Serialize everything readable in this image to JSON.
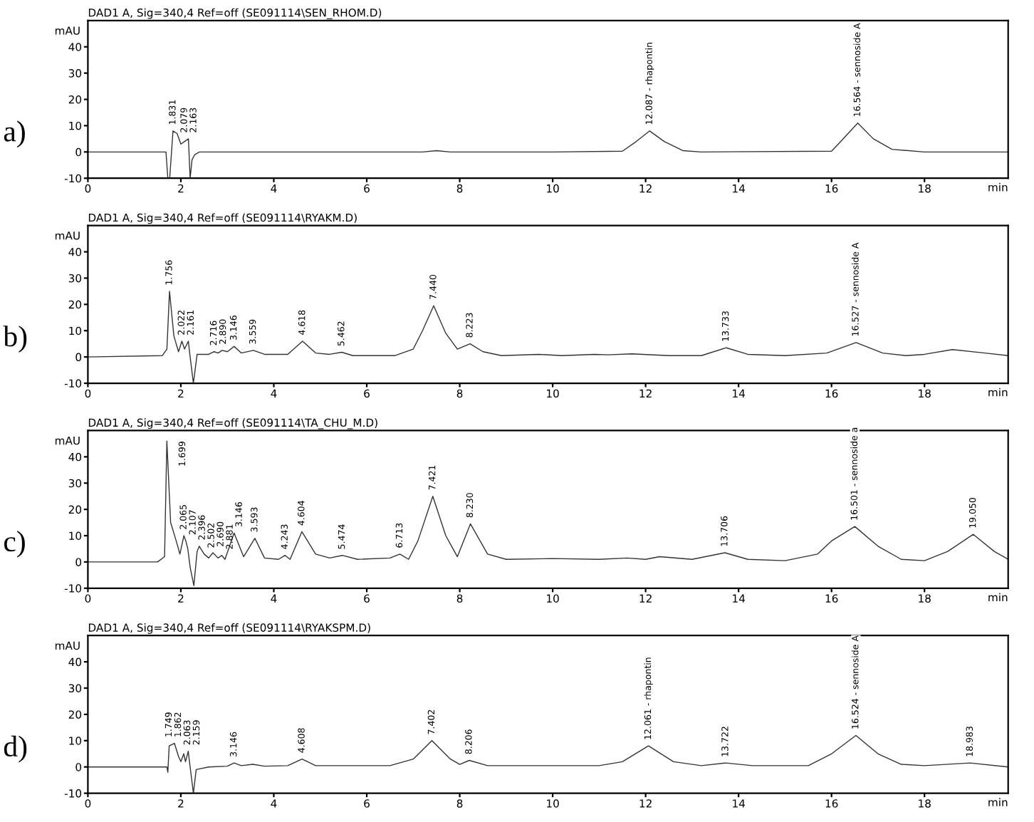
{
  "chart_data": [
    {
      "type": "line",
      "subtitle": "DAD1 A, Sig=340,4 Ref=off (SE091114\\SEN_RHOM.D)",
      "xlabel": "min",
      "ylabel": "mAU",
      "xlim": [
        0,
        19.8
      ],
      "xticks": [
        0,
        2,
        4,
        6,
        8,
        10,
        12,
        14,
        16,
        18
      ],
      "ylim": [
        -10,
        50
      ],
      "yticks": [
        -10,
        0,
        10,
        20,
        30,
        40
      ],
      "series": [
        {
          "color": "#333333",
          "x": [
            0,
            1.0,
            1.68,
            1.72,
            1.76,
            1.831,
            1.92,
            2.0,
            2.079,
            2.163,
            2.2,
            2.24,
            2.3,
            2.4,
            2.6,
            5,
            7.2,
            7.5,
            7.8,
            10,
            11.5,
            11.8,
            12.087,
            12.4,
            12.8,
            13.2,
            16.0,
            16.2,
            16.564,
            16.9,
            17.3,
            18,
            19.8
          ],
          "values": [
            0,
            0,
            0,
            -10,
            -10,
            8,
            7,
            3,
            4,
            5,
            -10,
            -3,
            -1,
            0,
            0,
            0,
            0,
            0.5,
            0,
            0,
            0.3,
            4,
            8,
            4,
            0.5,
            0,
            0.3,
            4,
            11,
            5,
            1,
            0,
            0
          ]
        }
      ],
      "annotations": [
        "a)",
        {
          "text": "1.831",
          "x": 1.831,
          "y": 8
        },
        {
          "text": "2.079",
          "x": 2.079,
          "y": 4
        },
        {
          "text": "2.163",
          "x": 2.163,
          "y": 5
        },
        {
          "text": "12.087 - rhapontin",
          "x": 12.087,
          "y": 8
        },
        {
          "text": "16.564 - sennoside A",
          "x": 16.564,
          "y": 11
        }
      ]
    },
    {
      "type": "line",
      "subtitle": "DAD1 A, Sig=340,4 Ref=off (SE091114\\RYAKM.D)",
      "xlabel": "min",
      "ylabel": "mAU",
      "xlim": [
        0,
        19.8
      ],
      "xticks": [
        0,
        2,
        4,
        6,
        8,
        10,
        12,
        14,
        16,
        18
      ],
      "ylim": [
        -10,
        50
      ],
      "yticks": [
        -10,
        0,
        10,
        20,
        30,
        40
      ],
      "series": [
        {
          "color": "#333333",
          "x": [
            0,
            1.6,
            1.7,
            1.756,
            1.85,
            1.95,
            2.022,
            2.08,
            2.161,
            2.2,
            2.27,
            2.35,
            2.6,
            2.716,
            2.8,
            2.89,
            3.0,
            3.146,
            3.3,
            3.559,
            3.8,
            4.3,
            4.618,
            4.9,
            5.2,
            5.462,
            5.7,
            6.6,
            7.0,
            7.2,
            7.44,
            7.7,
            7.95,
            8.223,
            8.5,
            8.9,
            9.7,
            10.2,
            10.9,
            11.2,
            11.7,
            12.5,
            13.2,
            13.733,
            14.2,
            15,
            15.9,
            16.527,
            17.1,
            17.6,
            18,
            18.6,
            19.3,
            19.8
          ],
          "values": [
            0,
            0.5,
            3,
            25,
            8,
            2,
            6,
            3,
            6,
            0,
            -10,
            1,
            1,
            2,
            1.5,
            2.5,
            2,
            4,
            1.5,
            2.5,
            1,
            1,
            6,
            1.5,
            1,
            1.8,
            0.5,
            0.5,
            3,
            10,
            19.5,
            9,
            3,
            5,
            2,
            0.5,
            1,
            0.5,
            1,
            0.8,
            1.2,
            0.5,
            0.5,
            3.5,
            1,
            0.5,
            1.5,
            5.5,
            1.5,
            0.5,
            1,
            2.8,
            1.5,
            0.5
          ]
        }
      ],
      "annotations": [
        "b)",
        {
          "text": "1.756",
          "x": 1.756,
          "y": 25
        },
        {
          "text": "2.022",
          "x": 2.022,
          "y": 6
        },
        {
          "text": "2.161",
          "x": 2.161,
          "y": 6
        },
        {
          "text": "2.716",
          "x": 2.716,
          "y": 2
        },
        {
          "text": "2.890",
          "x": 2.89,
          "y": 2.5
        },
        {
          "text": "3.146",
          "x": 3.146,
          "y": 4
        },
        {
          "text": "3.559",
          "x": 3.559,
          "y": 2.5
        },
        {
          "text": "4.618",
          "x": 4.618,
          "y": 6
        },
        {
          "text": "5.462",
          "x": 5.462,
          "y": 1.8
        },
        {
          "text": "7.440",
          "x": 7.44,
          "y": 19.5
        },
        {
          "text": "8.223",
          "x": 8.223,
          "y": 5
        },
        {
          "text": "13.733",
          "x": 13.733,
          "y": 3.5
        },
        {
          "text": "16.527 - sennoside A",
          "x": 16.527,
          "y": 5.5
        }
      ]
    },
    {
      "type": "line",
      "subtitle": "DAD1 A, Sig=340,4 Ref=off (SE091114\\TA_CHU_M.D)",
      "xlabel": "min",
      "ylabel": "mAU",
      "xlim": [
        0,
        19.8
      ],
      "xticks": [
        0,
        2,
        4,
        6,
        8,
        10,
        12,
        14,
        16,
        18
      ],
      "ylim": [
        -10,
        50
      ],
      "yticks": [
        -10,
        0,
        10,
        20,
        30,
        40
      ],
      "series": [
        {
          "color": "#333333",
          "x": [
            0,
            1.5,
            1.65,
            1.699,
            1.78,
            1.9,
            1.98,
            2.065,
            2.107,
            2.15,
            2.2,
            2.28,
            2.35,
            2.396,
            2.502,
            2.6,
            2.69,
            2.8,
            2.881,
            2.95,
            3.146,
            3.35,
            3.593,
            3.8,
            4.1,
            4.243,
            4.35,
            4.604,
            4.9,
            5.2,
            5.474,
            5.8,
            6.5,
            6.713,
            6.9,
            7.1,
            7.421,
            7.7,
            7.95,
            8.23,
            8.6,
            9,
            10,
            11,
            11.6,
            12,
            12.3,
            13,
            13.706,
            14.2,
            15,
            15.7,
            16.0,
            16.501,
            17,
            17.5,
            18.0,
            18.5,
            19.05,
            19.5,
            19.8
          ],
          "values": [
            0,
            0,
            2,
            46,
            15,
            8,
            3,
            10,
            8,
            5,
            -2,
            -9,
            4,
            6,
            3,
            1.5,
            3.5,
            1.5,
            2.5,
            1,
            11,
            2,
            9,
            1.5,
            1,
            2.5,
            1,
            11.5,
            3,
            1.5,
            2.5,
            1,
            1.5,
            3,
            1,
            8,
            25,
            10,
            2,
            14.5,
            3,
            1,
            1.3,
            1,
            1.5,
            1,
            2,
            1,
            3.5,
            1,
            0.5,
            3,
            8,
            13.5,
            6,
            1,
            0.5,
            4,
            10.5,
            4,
            1
          ]
        }
      ],
      "annotations": [
        "c)",
        {
          "text": "1.699",
          "x": 1.699,
          "y": 46
        },
        {
          "text": "2.065",
          "x": 2.065,
          "y": 10
        },
        {
          "text": "2.107",
          "x": 2.107,
          "y": 8
        },
        {
          "text": "2.396",
          "x": 2.396,
          "y": 6
        },
        {
          "text": "2.502",
          "x": 2.502,
          "y": 3
        },
        {
          "text": "2.690",
          "x": 2.69,
          "y": 3.5
        },
        {
          "text": "2.881",
          "x": 2.881,
          "y": 2.5
        },
        {
          "text": "3.146",
          "x": 3.146,
          "y": 11
        },
        {
          "text": "3.593",
          "x": 3.593,
          "y": 9
        },
        {
          "text": "4.243",
          "x": 4.243,
          "y": 2.5
        },
        {
          "text": "4.604",
          "x": 4.604,
          "y": 11.5
        },
        {
          "text": "5.474",
          "x": 5.474,
          "y": 2.5
        },
        {
          "text": "6.713",
          "x": 6.713,
          "y": 3
        },
        {
          "text": "7.421",
          "x": 7.421,
          "y": 25
        },
        {
          "text": "8.230",
          "x": 8.23,
          "y": 14.5
        },
        {
          "text": "13.706",
          "x": 13.706,
          "y": 3.5
        },
        {
          "text": "16.501 - sennoside a",
          "x": 16.501,
          "y": 13.5
        },
        {
          "text": "19.050",
          "x": 19.05,
          "y": 10.5
        }
      ]
    },
    {
      "type": "line",
      "subtitle": "DAD1 A, Sig=340,4 Ref=off (SE091114\\RYAKSPM.D)",
      "xlabel": "min",
      "ylabel": "mAU",
      "xlim": [
        0,
        19.8
      ],
      "xticks": [
        0,
        2,
        4,
        6,
        8,
        10,
        12,
        14,
        16,
        18
      ],
      "ylim": [
        -10,
        50
      ],
      "yticks": [
        -10,
        0,
        10,
        20,
        30,
        40
      ],
      "series": [
        {
          "color": "#333333",
          "x": [
            0,
            1.7,
            1.72,
            1.749,
            1.862,
            1.95,
            2.0,
            2.063,
            2.1,
            2.159,
            2.2,
            2.27,
            2.33,
            2.6,
            3.0,
            3.146,
            3.3,
            3.55,
            3.8,
            4.3,
            4.608,
            4.9,
            5.5,
            6.5,
            7.0,
            7.402,
            7.8,
            8.0,
            8.206,
            8.6,
            9.7,
            11.0,
            11.5,
            12.061,
            12.6,
            13.2,
            13.722,
            14.3,
            15.5,
            16.0,
            16.524,
            17,
            17.5,
            18.0,
            18.983,
            19.8
          ],
          "values": [
            0,
            0,
            -2,
            8,
            9,
            4,
            2,
            5,
            2,
            6,
            0,
            -10,
            -1,
            0,
            0.3,
            1.5,
            0.5,
            1,
            0.3,
            0.5,
            3,
            0.5,
            0.5,
            0.5,
            3,
            10,
            3,
            1,
            2.5,
            0.5,
            0.5,
            0.5,
            2,
            8,
            2,
            0.5,
            1.5,
            0.5,
            0.5,
            5,
            12,
            5,
            1,
            0.5,
            1.5,
            0
          ]
        }
      ],
      "annotations": [
        "d)",
        {
          "text": "1.749",
          "x": 1.749,
          "y": 8
        },
        {
          "text": "1.862",
          "x": 1.862,
          "y": 9
        },
        {
          "text": "2.063",
          "x": 2.063,
          "y": 5
        },
        {
          "text": "2.159",
          "x": 2.159,
          "y": 6
        },
        {
          "text": "3.146",
          "x": 3.146,
          "y": 1.5
        },
        {
          "text": "4.608",
          "x": 4.608,
          "y": 3
        },
        {
          "text": "7.402",
          "x": 7.402,
          "y": 10
        },
        {
          "text": "8.206",
          "x": 8.206,
          "y": 2.5
        },
        {
          "text": "12.061 - rhapontin",
          "x": 12.061,
          "y": 8
        },
        {
          "text": "13.722",
          "x": 13.722,
          "y": 1.5
        },
        {
          "text": "16.524 - sennoside A",
          "x": 16.524,
          "y": 12
        },
        {
          "text": "18.983",
          "x": 18.983,
          "y": 1.5
        }
      ]
    }
  ]
}
